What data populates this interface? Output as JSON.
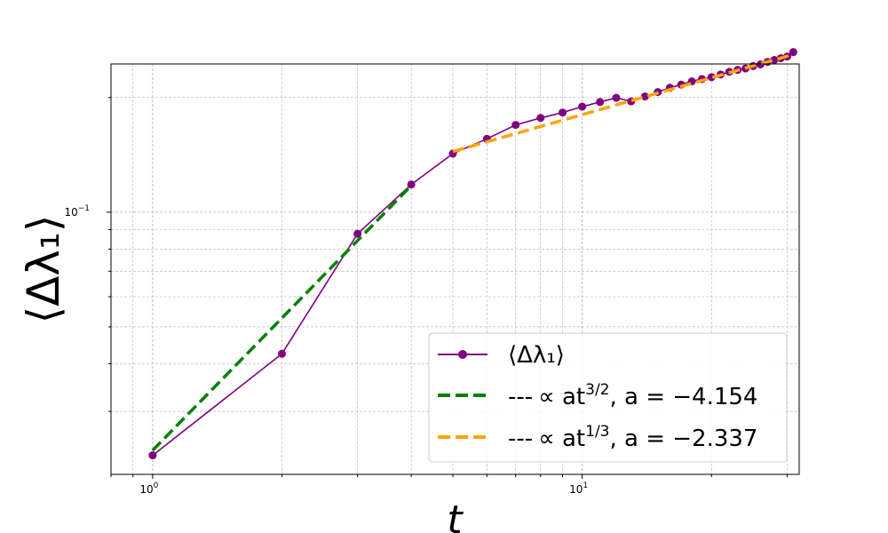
{
  "chart_data": {
    "type": "line",
    "xscale": "log",
    "yscale": "log",
    "xlim": [
      0.8,
      32
    ],
    "ylim": [
      0.0205,
      0.245
    ],
    "xlabel": "t",
    "ylabel": "⟨Δλ₁⟩",
    "x_ticks": [
      {
        "value": 1,
        "base": "10",
        "exp": "0"
      },
      {
        "value": 10,
        "base": "10",
        "exp": "1"
      }
    ],
    "y_ticks": [
      {
        "value": 0.1,
        "base": "10",
        "exp": "−1"
      }
    ],
    "grid": true,
    "legend_position": "lower right",
    "series": [
      {
        "name": "⟨Δλ₁⟩",
        "kind": "line-markers",
        "color": "#800080",
        "x": [
          1,
          2,
          3,
          4,
          5,
          6,
          7,
          8,
          9,
          10,
          11,
          12,
          13,
          14,
          15,
          16,
          17,
          18,
          19,
          20,
          21,
          22,
          23,
          24,
          25,
          26,
          27,
          28,
          29,
          30,
          31
        ],
        "y": [
          0.023,
          0.0425,
          0.0878,
          0.1182,
          0.1425,
          0.1558,
          0.1695,
          0.1768,
          0.1826,
          0.1893,
          0.1947,
          0.1997,
          0.1954,
          0.2013,
          0.2068,
          0.2122,
          0.2163,
          0.2205,
          0.2237,
          0.2262,
          0.2299,
          0.2336,
          0.2364,
          0.2384,
          0.2419,
          0.2444,
          0.248,
          0.251,
          0.2537,
          0.2562,
          0.2632
        ]
      },
      {
        "name_prefix": "---",
        "name_formula": "∝ at",
        "name_exponent": "3/2",
        "name_suffix": ", a = −4.154",
        "kind": "fit-dashed",
        "color": "#008000",
        "x": [
          1,
          4
        ],
        "y": [
          0.0237,
          0.1174
        ]
      },
      {
        "name_prefix": "---",
        "name_formula": "∝ at",
        "name_exponent": "1/3",
        "name_suffix": ", a = −2.337",
        "kind": "fit-dashed",
        "color": "#FFA500",
        "x": [
          5,
          31
        ],
        "y": [
          0.1443,
          0.2595
        ]
      }
    ]
  }
}
